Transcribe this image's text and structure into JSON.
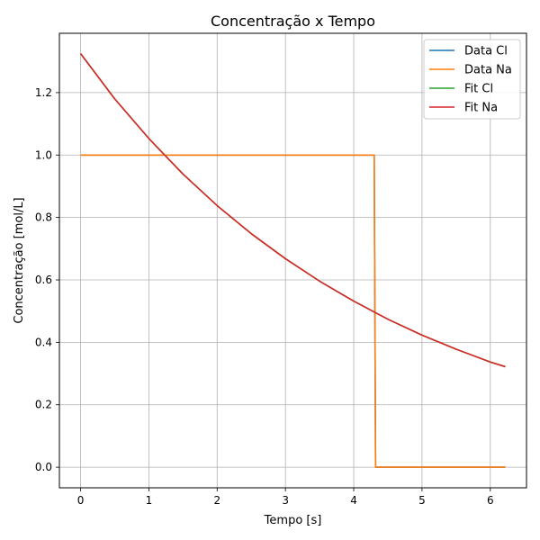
{
  "chart_data": {
    "type": "line",
    "title": "Concentração x Tempo",
    "xlabel": "Tempo [s]",
    "ylabel": "Concentração [mol/L]",
    "xlim": [
      -0.31,
      6.53
    ],
    "ylim": [
      -0.066,
      1.39
    ],
    "xticks": [
      0,
      1,
      2,
      3,
      4,
      5,
      6
    ],
    "yticks": [
      0.0,
      0.2,
      0.4,
      0.6,
      0.8,
      1.0,
      1.2
    ],
    "grid": true,
    "legend_position": "top-right",
    "series": [
      {
        "name": "Data Cl",
        "color": "#1f77b4",
        "x": [
          0,
          4.3,
          4.32,
          6.22
        ],
        "y": [
          1.0,
          1.0,
          0.0,
          0.0
        ]
      },
      {
        "name": "Data Na",
        "color": "#ff7f0e",
        "x": [
          0,
          4.3,
          4.32,
          6.22
        ],
        "y": [
          1.0,
          1.0,
          0.0,
          0.0
        ]
      },
      {
        "name": "Fit Cl",
        "color": "#2ca02c",
        "x": [
          0,
          0.5,
          1.0,
          1.5,
          2.0,
          2.5,
          3.0,
          3.5,
          4.0,
          4.5,
          5.0,
          5.5,
          6.0,
          6.22
        ],
        "y": [
          1.325,
          1.18,
          1.053,
          0.939,
          0.838,
          0.748,
          0.668,
          0.596,
          0.532,
          0.474,
          0.423,
          0.378,
          0.337,
          0.322
        ]
      },
      {
        "name": "Fit Na",
        "color": "#d62728",
        "x": [
          0,
          0.5,
          1.0,
          1.5,
          2.0,
          2.5,
          3.0,
          3.5,
          4.0,
          4.5,
          5.0,
          5.5,
          6.0,
          6.22
        ],
        "y": [
          1.325,
          1.18,
          1.053,
          0.939,
          0.838,
          0.748,
          0.668,
          0.596,
          0.532,
          0.474,
          0.423,
          0.378,
          0.337,
          0.322
        ]
      }
    ]
  }
}
